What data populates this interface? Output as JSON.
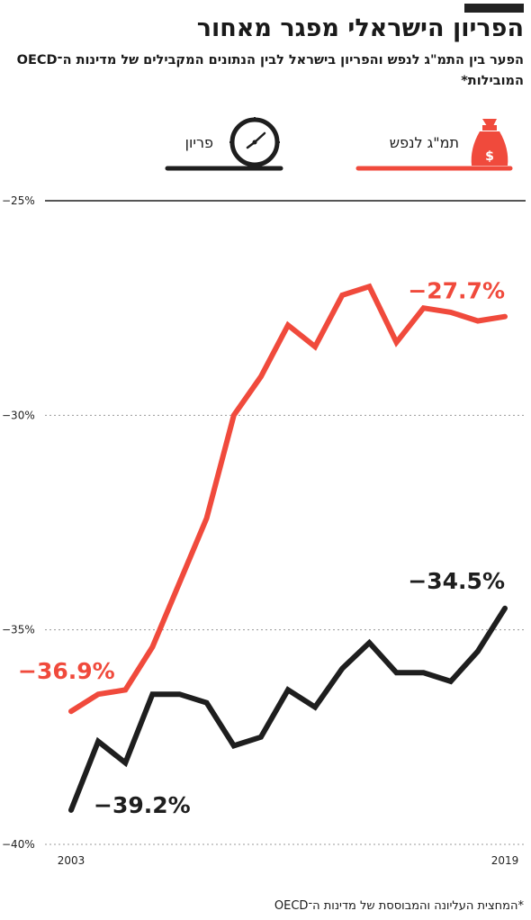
{
  "header": {
    "title": "הפריון הישראלי מפגר מאחור",
    "subtitle": "הפער בין התמ\"ג לנפש והפריון בישראל לבין הנתונים המקבילים של מדינות ה־OECD המובילות*"
  },
  "legend": {
    "gdp_label": "תמ\"ג לנפש",
    "gdp_icon": "money-bag-icon",
    "prod_label": "פריון",
    "prod_icon": "clock-icon"
  },
  "footnote": "*המחצית העליונה והמבוססת של מדינות ה־OECD",
  "colors": {
    "gdp": "#f04a3c",
    "productivity": "#1e1e1e",
    "grid": "#9a9a9a"
  },
  "chart_data": {
    "type": "line",
    "x": [
      2003,
      2004,
      2005,
      2006,
      2007,
      2008,
      2009,
      2010,
      2011,
      2012,
      2013,
      2014,
      2015,
      2016,
      2017,
      2018,
      2019
    ],
    "x_tick_labels": [
      "2003",
      "2019"
    ],
    "y_tick_labels": [
      "−25%",
      "−30%",
      "−35%",
      "−40%"
    ],
    "y_ticks": [
      -25,
      -30,
      -35,
      -40
    ],
    "ylim": [
      -40,
      -25
    ],
    "grid": "horizontal dotted",
    "series": [
      {
        "name": "תמ\"ג לנפש",
        "color": "#f04a3c",
        "values": [
          -36.9,
          -36.5,
          -36.4,
          -35.4,
          -33.9,
          -32.4,
          -30.0,
          -29.1,
          -27.9,
          -28.4,
          -27.2,
          -27.0,
          -28.3,
          -27.5,
          -27.6,
          -27.8,
          -27.7
        ],
        "start_label": "−36.9%",
        "end_label": "−27.7%"
      },
      {
        "name": "פריון",
        "color": "#1e1e1e",
        "values": [
          -39.2,
          -37.6,
          -38.1,
          -36.5,
          -36.5,
          -36.7,
          -37.7,
          -37.5,
          -36.4,
          -36.8,
          -35.9,
          -35.3,
          -36.0,
          -36.0,
          -36.2,
          -35.5,
          -34.5
        ],
        "start_label": "−39.2%",
        "end_label": "−34.5%"
      }
    ]
  }
}
